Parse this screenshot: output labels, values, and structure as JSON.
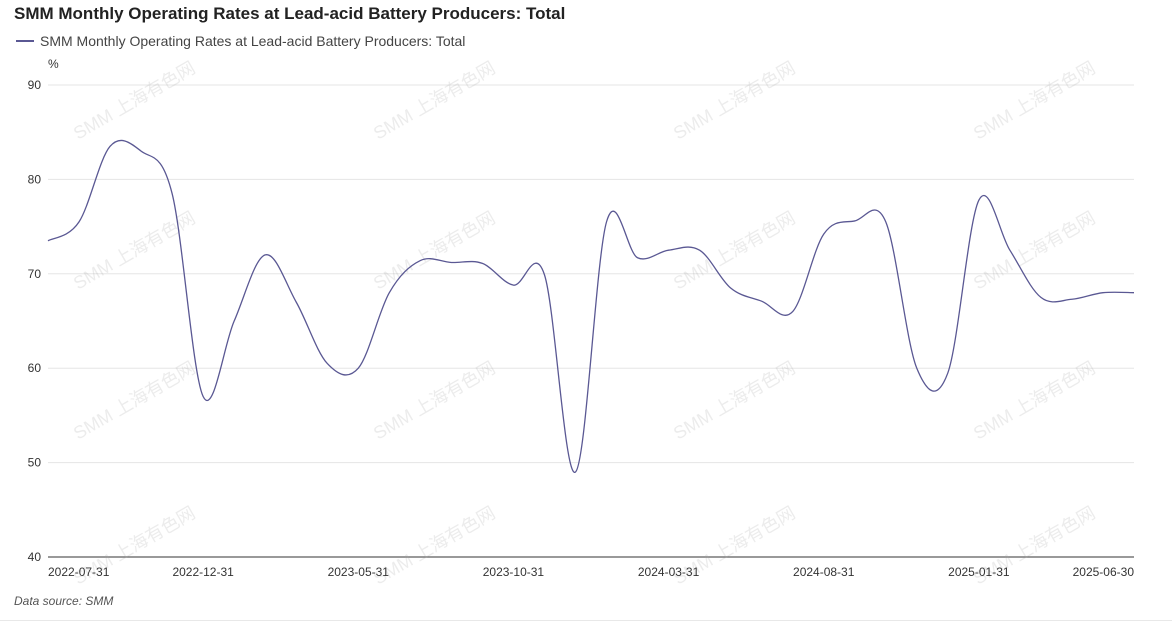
{
  "title": "SMM Monthly Operating Rates at Lead-acid Battery Producers: Total",
  "legend": {
    "label": "SMM Monthly Operating Rates at Lead-acid Battery Producers: Total"
  },
  "unit": "%",
  "source": "Data source:  SMM",
  "watermark": "SMM 上海有色网",
  "colors": {
    "series": "#5a5893",
    "grid": "#e5e5e5",
    "axis": "#333333"
  },
  "chart_data": {
    "type": "line",
    "title": "SMM Monthly Operating Rates at Lead-acid Battery Producers: Total",
    "ylabel": "%",
    "ylim": [
      40,
      90
    ],
    "yticks": [
      40,
      50,
      60,
      70,
      80,
      90
    ],
    "xtick_labels": [
      "2022-07-31",
      "2022-12-31",
      "2023-05-31",
      "2023-10-31",
      "2024-03-31",
      "2024-08-31",
      "2025-01-31",
      "2025-06-30"
    ],
    "grid": true,
    "legend_position": "top-left",
    "x": [
      "2022-07-31",
      "2022-08-31",
      "2022-09-30",
      "2022-10-31",
      "2022-11-30",
      "2022-12-31",
      "2023-01-31",
      "2023-02-28",
      "2023-03-31",
      "2023-04-30",
      "2023-05-31",
      "2023-06-30",
      "2023-07-31",
      "2023-08-31",
      "2023-09-30",
      "2023-10-31",
      "2023-11-30",
      "2023-12-31",
      "2024-01-31",
      "2024-02-29",
      "2024-03-31",
      "2024-04-30",
      "2024-05-31",
      "2024-06-30",
      "2024-07-31",
      "2024-08-31",
      "2024-09-30",
      "2024-10-31",
      "2024-11-30",
      "2024-12-31",
      "2025-01-31",
      "2025-02-28",
      "2025-03-31",
      "2025-04-30",
      "2025-05-31",
      "2025-06-30"
    ],
    "series": [
      {
        "name": "SMM Monthly Operating Rates at Lead-acid Battery Producers: Total",
        "values": [
          73.5,
          75.5,
          83.5,
          83.0,
          78.5,
          57.0,
          65.0,
          72.0,
          67.0,
          60.5,
          60.0,
          68.0,
          71.4,
          71.2,
          71.1,
          68.8,
          69.9,
          49.0,
          75.5,
          71.7,
          72.5,
          72.5,
          68.5,
          67.1,
          66.0,
          74.2,
          75.6,
          75.5,
          60.0,
          59.5,
          77.8,
          72.5,
          67.5,
          67.3,
          68.0,
          68.0
        ]
      }
    ]
  }
}
